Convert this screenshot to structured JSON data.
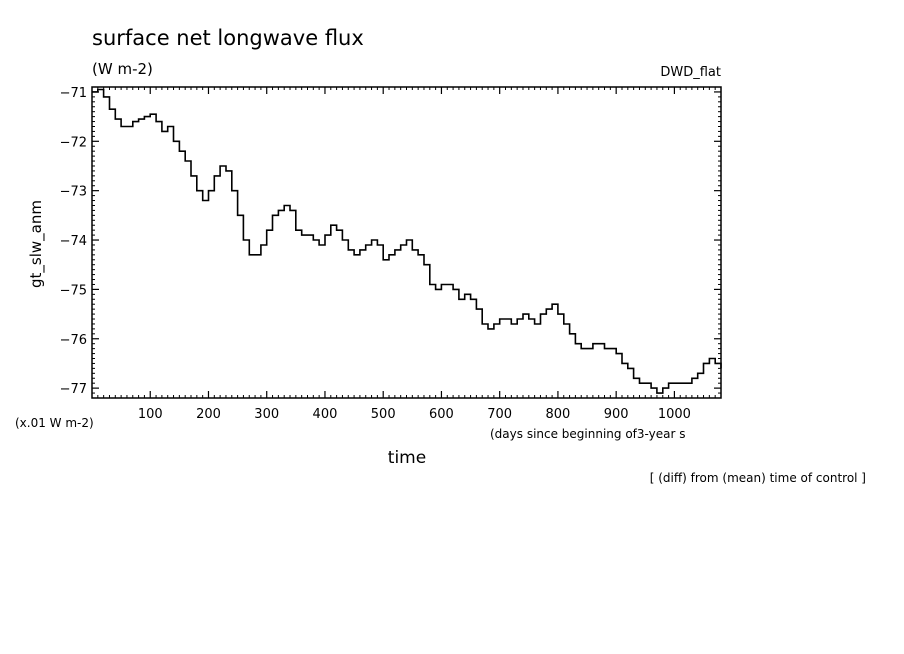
{
  "chart_data": {
    "type": "line",
    "title": "surface net longwave flux",
    "units": "(W m-2)",
    "dataset_label": "DWD_flat",
    "ylabel": "gt_slw_anm",
    "xlabel": "time",
    "x_axis_note": "(days since beginning of3-year s",
    "y_scale_note": "(x.01 W m-2)",
    "footnote": "[ (diff) from (mean) time of control ]",
    "xlim": [
      0,
      1080
    ],
    "ylim": [
      -77.2,
      -70.9
    ],
    "x_ticks": [
      100,
      200,
      300,
      400,
      500,
      600,
      700,
      800,
      900,
      1000
    ],
    "y_ticks": [
      -71,
      -72,
      -73,
      -74,
      -75,
      -76,
      -77
    ],
    "grid": false,
    "series": [
      {
        "color": "#000000",
        "x": [
          0,
          10,
          20,
          30,
          40,
          50,
          60,
          70,
          80,
          90,
          100,
          110,
          120,
          130,
          140,
          150,
          160,
          170,
          180,
          190,
          200,
          210,
          220,
          230,
          240,
          250,
          260,
          270,
          280,
          290,
          300,
          310,
          320,
          330,
          340,
          350,
          360,
          370,
          380,
          390,
          400,
          410,
          420,
          430,
          440,
          450,
          460,
          470,
          480,
          490,
          500,
          510,
          520,
          530,
          540,
          550,
          560,
          570,
          580,
          590,
          600,
          610,
          620,
          630,
          640,
          650,
          660,
          670,
          680,
          690,
          700,
          710,
          720,
          730,
          740,
          750,
          760,
          770,
          780,
          790,
          800,
          810,
          820,
          830,
          840,
          850,
          860,
          870,
          880,
          890,
          900,
          910,
          920,
          930,
          940,
          950,
          960,
          970,
          980,
          990,
          1000,
          1010,
          1020,
          1030,
          1040,
          1050,
          1060,
          1070,
          1080
        ],
        "values": [
          -71.0,
          -70.95,
          -71.1,
          -71.35,
          -71.55,
          -71.7,
          -71.7,
          -71.6,
          -71.55,
          -71.5,
          -71.45,
          -71.6,
          -71.8,
          -71.7,
          -72.0,
          -72.2,
          -72.4,
          -72.7,
          -73.0,
          -73.2,
          -73.0,
          -72.7,
          -72.5,
          -72.6,
          -73.0,
          -73.5,
          -74.0,
          -74.3,
          -74.3,
          -74.1,
          -73.8,
          -73.5,
          -73.4,
          -73.3,
          -73.4,
          -73.8,
          -73.9,
          -73.9,
          -74.0,
          -74.1,
          -73.9,
          -73.7,
          -73.8,
          -74.0,
          -74.2,
          -74.3,
          -74.2,
          -74.1,
          -74.0,
          -74.1,
          -74.4,
          -74.3,
          -74.2,
          -74.1,
          -74.0,
          -74.2,
          -74.3,
          -74.5,
          -74.9,
          -75.0,
          -74.9,
          -74.9,
          -75.0,
          -75.2,
          -75.1,
          -75.2,
          -75.4,
          -75.7,
          -75.8,
          -75.7,
          -75.6,
          -75.6,
          -75.7,
          -75.6,
          -75.5,
          -75.6,
          -75.7,
          -75.5,
          -75.4,
          -75.3,
          -75.5,
          -75.7,
          -75.9,
          -76.1,
          -76.2,
          -76.2,
          -76.1,
          -76.1,
          -76.2,
          -76.2,
          -76.3,
          -76.5,
          -76.6,
          -76.8,
          -76.9,
          -76.9,
          -77.0,
          -77.1,
          -77.0,
          -76.9,
          -76.9,
          -76.9,
          -76.9,
          -76.8,
          -76.7,
          -76.5,
          -76.4,
          -76.5,
          -76.6
        ]
      }
    ]
  }
}
